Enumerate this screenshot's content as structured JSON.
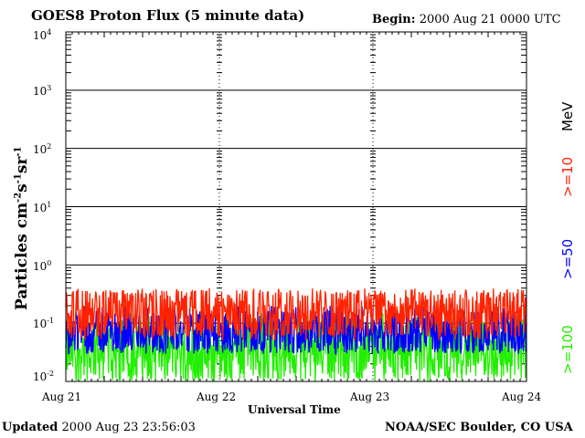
{
  "header": {
    "title": "GOES8 Proton Flux (5 minute data)",
    "begin_label": "Begin:",
    "begin_value": "2000 Aug 21 0000 UTC"
  },
  "footer": {
    "updated_label": "Updated",
    "updated_value": "2000 Aug 23 23:56:03",
    "source": "NOAA/SEC Boulder, CO USA"
  },
  "colors": {
    "red": "#ff2200",
    "blue": "#0000ff",
    "green": "#22ee00",
    "grid": "#000000"
  },
  "chart_data": {
    "type": "line",
    "title": "GOES8 Proton Flux (5 minute data)",
    "xlabel": "Universal Time",
    "ylabel_base": "Particles cm",
    "ylabel_sup1": "-2",
    "ylabel_mid1": "s",
    "ylabel_sup2": "-1",
    "ylabel_mid2": "sr",
    "ylabel_sup3": "-1",
    "y_scale": "log",
    "ylim": [
      0.01,
      10000
    ],
    "yticks": [
      {
        "base": "10",
        "exp": "4"
      },
      {
        "base": "10",
        "exp": "3"
      },
      {
        "base": "10",
        "exp": "2"
      },
      {
        "base": "10",
        "exp": "1"
      },
      {
        "base": "10",
        "exp": "0"
      },
      {
        "base": "10",
        "exp": "-1"
      },
      {
        "base": "10",
        "exp": "-2"
      }
    ],
    "xticks": [
      "Aug 21",
      "Aug 22",
      "Aug 23",
      "Aug 24"
    ],
    "xlim": [
      "2000-08-21",
      "2000-08-24"
    ],
    "grid": true,
    "legend_placement": "right (vertical)",
    "unit_label": "MeV",
    "series": [
      {
        "name": ">=10",
        "color": "#ff2200",
        "typical_flux": 0.15,
        "range": [
          0.05,
          0.4
        ]
      },
      {
        "name": ">=50",
        "color": "#0000ff",
        "typical_flux": 0.07,
        "range": [
          0.03,
          0.2
        ]
      },
      {
        "name": ">=100",
        "color": "#22ee00",
        "typical_flux": 0.035,
        "range": [
          0.01,
          0.15
        ]
      }
    ]
  }
}
